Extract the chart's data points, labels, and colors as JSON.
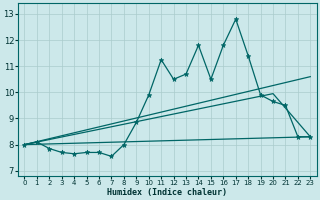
{
  "title": "",
  "xlabel": "Humidex (Indice chaleur)",
  "ylabel": "",
  "bg_color": "#cce8ea",
  "grid_color": "#aacccc",
  "line_color": "#006666",
  "x_ticks": [
    0,
    1,
    2,
    3,
    4,
    5,
    6,
    7,
    8,
    9,
    10,
    11,
    12,
    13,
    14,
    15,
    16,
    17,
    18,
    19,
    20,
    21,
    22,
    23
  ],
  "y_ticks": [
    7,
    8,
    9,
    10,
    11,
    12,
    13
  ],
  "ylim": [
    6.8,
    13.4
  ],
  "xlim": [
    -0.5,
    23.5
  ],
  "series1_x": [
    0,
    1,
    2,
    3,
    4,
    5,
    6,
    7,
    8,
    9,
    10,
    11,
    12,
    13,
    14,
    15,
    16,
    17,
    18,
    19,
    20,
    21,
    22,
    23
  ],
  "series1_y": [
    8.0,
    8.1,
    7.85,
    7.7,
    7.65,
    7.7,
    7.7,
    7.55,
    8.0,
    8.85,
    9.9,
    11.25,
    10.5,
    10.7,
    11.8,
    10.5,
    11.8,
    12.8,
    11.4,
    9.9,
    9.65,
    9.5,
    8.3,
    8.3
  ],
  "series2_x": [
    0,
    23
  ],
  "series2_y": [
    8.0,
    10.6
  ],
  "series3_x": [
    0,
    20,
    23
  ],
  "series3_y": [
    8.0,
    9.95,
    8.3
  ],
  "series4_x": [
    0,
    23
  ],
  "series4_y": [
    8.0,
    8.3
  ]
}
